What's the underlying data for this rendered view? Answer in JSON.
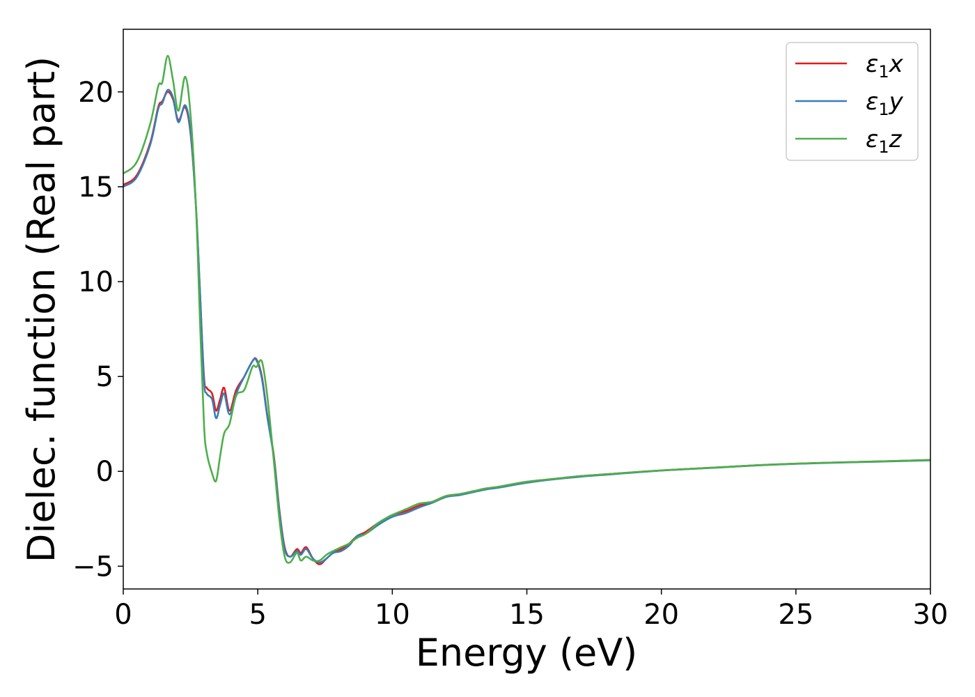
{
  "chart_data": {
    "type": "line",
    "title": "",
    "xlabel": "Energy (eV)",
    "ylabel": "Dielec. function (Real part)",
    "xlim": [
      0,
      30
    ],
    "ylim": [
      -6.2,
      23.3
    ],
    "xticks": [
      0,
      5,
      10,
      15,
      20,
      25,
      30
    ],
    "xtick_labels": [
      "0",
      "5",
      "10",
      "15",
      "20",
      "25",
      "30"
    ],
    "yticks": [
      -5,
      0,
      5,
      10,
      15,
      20
    ],
    "ytick_labels": [
      "−5",
      "0",
      "5",
      "10",
      "15",
      "20"
    ],
    "grid": false,
    "legend_position": "top-right",
    "series": [
      {
        "name": "ε1x",
        "name_parts": {
          "base": "ε",
          "sub": "1",
          "suffix": "x"
        },
        "color": "#e41a1c",
        "x": [
          0,
          0.5,
          1.0,
          1.3,
          1.45,
          1.65,
          1.85,
          2.05,
          2.3,
          2.5,
          2.7,
          2.85,
          3.0,
          3.1,
          3.3,
          3.45,
          3.6,
          3.75,
          3.95,
          4.2,
          4.5,
          4.8,
          4.95,
          5.15,
          5.35,
          5.6,
          5.8,
          6.0,
          6.2,
          6.45,
          6.6,
          6.8,
          7.05,
          7.3,
          7.55,
          7.8,
          8.1,
          8.4,
          8.7,
          9.0,
          9.5,
          10.0,
          10.5,
          11.0,
          11.5,
          12.0,
          12.5,
          13.0,
          13.5,
          14.0,
          15.0,
          16.0,
          17.0,
          18.0,
          20.0,
          22.0,
          24.0,
          26.0,
          28.0,
          30.0
        ],
        "y": [
          15.1,
          15.6,
          17.3,
          19.2,
          19.5,
          20.0,
          19.6,
          18.5,
          19.2,
          17.8,
          14.0,
          9.5,
          5.0,
          4.4,
          4.1,
          3.2,
          3.8,
          4.4,
          3.2,
          4.3,
          5.0,
          5.8,
          5.9,
          5.0,
          3.0,
          0.8,
          -2.0,
          -4.0,
          -4.5,
          -4.1,
          -4.3,
          -4.0,
          -4.6,
          -4.9,
          -4.6,
          -4.3,
          -4.1,
          -3.8,
          -3.4,
          -3.2,
          -2.7,
          -2.3,
          -2.1,
          -1.8,
          -1.6,
          -1.3,
          -1.2,
          -1.05,
          -0.9,
          -0.8,
          -0.55,
          -0.4,
          -0.25,
          -0.15,
          0.05,
          0.2,
          0.35,
          0.45,
          0.52,
          0.6
        ]
      },
      {
        "name": "ε1y",
        "name_parts": {
          "base": "ε",
          "sub": "1",
          "suffix": "y"
        },
        "color": "#377eb8",
        "x": [
          0,
          0.5,
          1.0,
          1.3,
          1.45,
          1.65,
          1.85,
          2.05,
          2.3,
          2.5,
          2.7,
          2.85,
          3.0,
          3.1,
          3.3,
          3.45,
          3.6,
          3.75,
          3.95,
          4.2,
          4.5,
          4.8,
          4.95,
          5.15,
          5.35,
          5.6,
          5.8,
          6.0,
          6.2,
          6.45,
          6.6,
          6.8,
          7.05,
          7.3,
          7.55,
          7.8,
          8.1,
          8.4,
          8.7,
          9.0,
          9.5,
          10.0,
          10.5,
          11.0,
          11.5,
          12.0,
          12.5,
          13.0,
          13.5,
          14.0,
          15.0,
          16.0,
          17.0,
          18.0,
          20.0,
          22.0,
          24.0,
          26.0,
          28.0,
          30.0
        ],
        "y": [
          15.0,
          15.5,
          17.2,
          19.1,
          19.4,
          20.1,
          19.7,
          18.4,
          19.3,
          17.9,
          14.0,
          9.5,
          4.8,
          4.1,
          3.8,
          2.8,
          3.5,
          4.1,
          3.0,
          4.1,
          5.0,
          5.8,
          5.85,
          4.9,
          2.9,
          0.7,
          -2.1,
          -4.1,
          -4.5,
          -4.2,
          -4.4,
          -4.1,
          -4.6,
          -4.8,
          -4.6,
          -4.3,
          -4.2,
          -3.9,
          -3.4,
          -3.3,
          -2.8,
          -2.4,
          -2.2,
          -1.9,
          -1.65,
          -1.35,
          -1.25,
          -1.1,
          -0.95,
          -0.85,
          -0.6,
          -0.42,
          -0.28,
          -0.17,
          0.04,
          0.19,
          0.34,
          0.44,
          0.51,
          0.58
        ]
      },
      {
        "name": "ε1z",
        "name_parts": {
          "base": "ε",
          "sub": "1",
          "suffix": "z"
        },
        "color": "#4daf4a",
        "x": [
          0,
          0.5,
          1.0,
          1.3,
          1.45,
          1.65,
          1.85,
          2.05,
          2.3,
          2.5,
          2.7,
          2.85,
          3.0,
          3.1,
          3.3,
          3.45,
          3.6,
          3.75,
          3.95,
          4.2,
          4.5,
          4.8,
          4.95,
          5.15,
          5.35,
          5.6,
          5.8,
          6.0,
          6.2,
          6.45,
          6.6,
          6.8,
          7.05,
          7.3,
          7.55,
          7.8,
          8.1,
          8.4,
          8.7,
          9.0,
          9.5,
          10.0,
          10.5,
          11.0,
          11.5,
          12.0,
          12.5,
          13.0,
          13.5,
          14.0,
          15.0,
          16.0,
          17.0,
          18.0,
          20.0,
          22.0,
          24.0,
          26.0,
          28.0,
          30.0
        ],
        "y": [
          15.7,
          16.3,
          18.3,
          20.3,
          20.5,
          21.9,
          20.6,
          19.0,
          20.8,
          18.8,
          14.0,
          8.0,
          2.5,
          1.0,
          -0.1,
          -0.5,
          0.8,
          2.0,
          2.5,
          4.0,
          4.3,
          5.5,
          5.5,
          5.8,
          4.0,
          0.5,
          -2.5,
          -4.5,
          -4.8,
          -4.3,
          -4.7,
          -4.5,
          -4.7,
          -4.7,
          -4.4,
          -4.2,
          -4.0,
          -3.8,
          -3.5,
          -3.3,
          -2.7,
          -2.3,
          -2.0,
          -1.7,
          -1.6,
          -1.3,
          -1.2,
          -1.05,
          -0.9,
          -0.8,
          -0.55,
          -0.4,
          -0.25,
          -0.15,
          0.05,
          0.2,
          0.35,
          0.45,
          0.52,
          0.6
        ]
      }
    ]
  }
}
